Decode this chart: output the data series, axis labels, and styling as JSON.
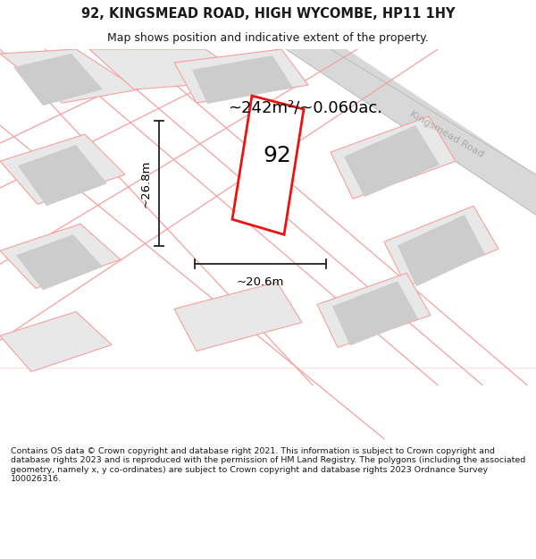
{
  "title": "92, KINGSMEAD ROAD, HIGH WYCOMBE, HP11 1HY",
  "subtitle": "Map shows position and indicative extent of the property.",
  "footer": "Contains OS data © Crown copyright and database right 2021. This information is subject to Crown copyright and database rights 2023 and is reproduced with the permission of HM Land Registry. The polygons (including the associated geometry, namely x, y co-ordinates) are subject to Crown copyright and database rights 2023 Ordnance Survey 100026316.",
  "bg_color": "#ffffff",
  "map_bg": "#ffffff",
  "title_color": "#1a1a1a",
  "road_label": "Kingsmead Road",
  "area_label": "~242m²/~0.060ac.",
  "width_label": "~20.6m",
  "height_label": "~26.8m",
  "property_label": "92",
  "red_color": "#ee1111",
  "pink_color": "#f5a0a0",
  "gray_fill": "#cccccc",
  "light_gray_fill": "#e8e8e8",
  "road_fill": "#d8d8d8",
  "road_label_color": "#aaaaaa",
  "dim_color": "#222222"
}
